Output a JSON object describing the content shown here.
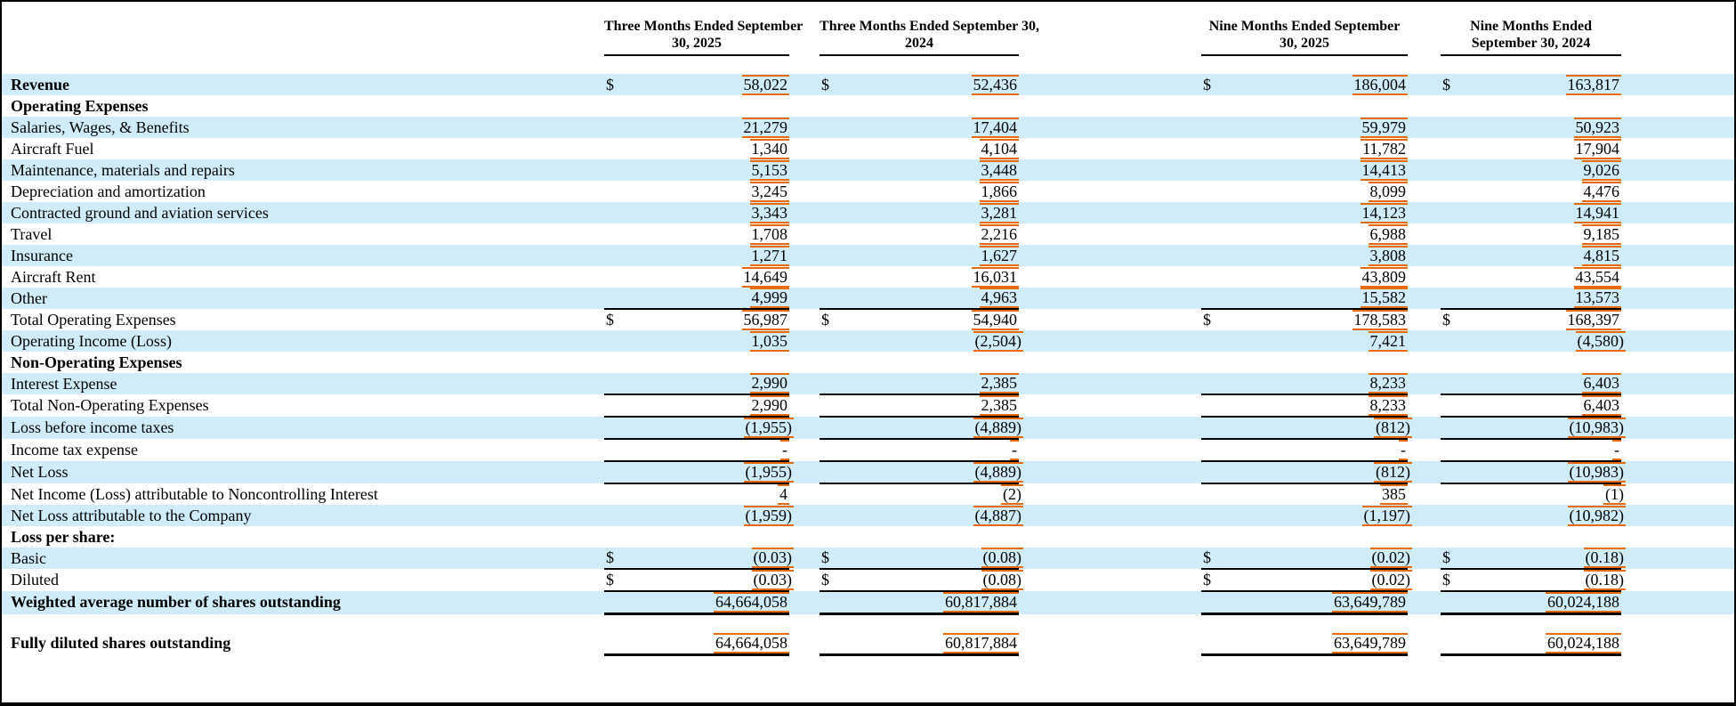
{
  "colors": {
    "row_shade": "#d1ecf9",
    "mark": "#e76b0e",
    "rule": "#000000"
  },
  "table": {
    "currency_symbol": "$",
    "header": {
      "periods": [
        {
          "line1": "Three Months Ended September",
          "line2": "30, 2025"
        },
        {
          "line1": "Three Months Ended September 30,",
          "line2": "2024"
        },
        {
          "line1": "Nine Months Ended September",
          "line2": "30, 2025"
        },
        {
          "line1": "Nine Months Ended",
          "line2": "September 30, 2024"
        }
      ]
    },
    "rows": [
      {
        "spacer": true
      },
      {
        "label": "Revenue",
        "bold": true,
        "dollar": true,
        "shaded": true,
        "values": [
          "58,022",
          "52,436",
          "186,004",
          "163,817"
        ]
      },
      {
        "label": "Operating Expenses",
        "bold": true,
        "values": null
      },
      {
        "label": "Salaries, Wages, & Benefits",
        "shaded": true,
        "values": [
          "21,279",
          "17,404",
          "59,979",
          "50,923"
        ]
      },
      {
        "label": "Aircraft Fuel",
        "values": [
          "1,340",
          "4,104",
          "11,782",
          "17,904"
        ]
      },
      {
        "label": "Maintenance, materials and repairs",
        "shaded": true,
        "values": [
          "5,153",
          "3,448",
          "14,413",
          "9,026"
        ]
      },
      {
        "label": "Depreciation and amortization",
        "values": [
          "3,245",
          "1,866",
          "8,099",
          "4,476"
        ]
      },
      {
        "label": "Contracted ground and aviation services",
        "shaded": true,
        "values": [
          "3,343",
          "3,281",
          "14,123",
          "14,941"
        ]
      },
      {
        "label": "Travel",
        "values": [
          "1,708",
          "2,216",
          "6,988",
          "9,185"
        ]
      },
      {
        "label": "Insurance",
        "shaded": true,
        "values": [
          "1,271",
          "1,627",
          "3,808",
          "4,815"
        ]
      },
      {
        "label": "Aircraft Rent",
        "values": [
          "14,649",
          "16,031",
          "43,809",
          "43,554"
        ]
      },
      {
        "label": "Other",
        "shaded": true,
        "values": [
          "4,999",
          "4,963",
          "15,582",
          "13,573"
        ]
      },
      {
        "label": "Total Operating Expenses",
        "dollar": true,
        "rule_top": true,
        "values": [
          "56,987",
          "54,940",
          "178,583",
          "168,397"
        ]
      },
      {
        "label": "Operating Income (Loss)",
        "shaded": true,
        "values": [
          "1,035",
          "(2,504)",
          "7,421",
          "(4,580)"
        ]
      },
      {
        "label": "Non-Operating Expenses",
        "bold": true,
        "values": null
      },
      {
        "label": "Interest Expense",
        "shaded": true,
        "rule_bottom": true,
        "values": [
          "2,990",
          "2,385",
          "8,233",
          "6,403"
        ]
      },
      {
        "label": "Total Non-Operating Expenses",
        "rule_bottom": true,
        "values": [
          "2,990",
          "2,385",
          "8,233",
          "6,403"
        ]
      },
      {
        "label": "Loss before income taxes",
        "shaded": true,
        "rule_bottom": true,
        "values": [
          "(1,955)",
          "(4,889)",
          "(812)",
          "(10,983)"
        ]
      },
      {
        "label": "Income tax expense",
        "rule_bottom": true,
        "values": [
          "-",
          "-",
          "-",
          "-"
        ]
      },
      {
        "label": "Net Loss",
        "shaded": true,
        "rule_bottom": true,
        "values": [
          "(1,955)",
          "(4,889)",
          "(812)",
          "(10,983)"
        ]
      },
      {
        "label": "Net Income (Loss) attributable to Noncontrolling Interest",
        "values": [
          "4",
          "(2)",
          "385",
          "(1)"
        ]
      },
      {
        "label": "Net Loss attributable to the Company",
        "shaded": true,
        "values": [
          "(1,959)",
          "(4,887)",
          "(1,197)",
          "(10,982)"
        ]
      },
      {
        "label": "Loss per share:",
        "bold": true,
        "values": null
      },
      {
        "label": "Basic",
        "shaded": true,
        "dollar": true,
        "rule_bottom": true,
        "values": [
          "(0.03)",
          "(0.08)",
          "(0.02)",
          "(0.18)"
        ]
      },
      {
        "label": "Diluted",
        "dollar": true,
        "rule_bottom": true,
        "values": [
          "(0.03)",
          "(0.08)",
          "(0.02)",
          "(0.18)"
        ]
      },
      {
        "label": "Weighted average number of shares outstanding",
        "bold": true,
        "shaded": true,
        "rule_bottom": true,
        "thick": true,
        "values": [
          "64,664,058",
          "60,817,884",
          "63,649,789",
          "60,024,188"
        ]
      },
      {
        "spacer": true
      },
      {
        "label": "Fully diluted shares outstanding",
        "bold": true,
        "rule_bottom": true,
        "thick": true,
        "values": [
          "64,664,058",
          "60,817,884",
          "63,649,789",
          "60,024,188"
        ]
      }
    ]
  }
}
